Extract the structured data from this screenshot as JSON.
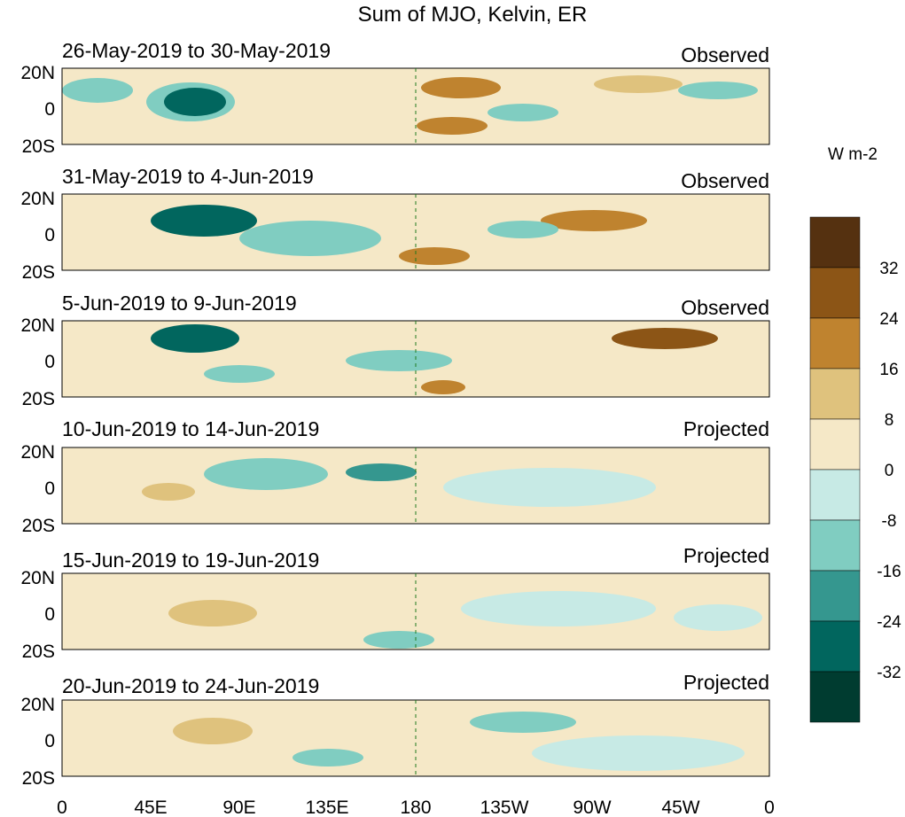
{
  "title": "Sum of MJO, Kelvin, ER",
  "colorbar": {
    "units": "W m-2",
    "tick_labels": [
      "32",
      "24",
      "16",
      "8",
      "0",
      "-8",
      "-16",
      "-24",
      "-32"
    ],
    "colors": [
      "#553110",
      "#8c5516",
      "#bf832f",
      "#dfc27d",
      "#f5e8c7",
      "#c7eae5",
      "#80cdc1",
      "#35978f",
      "#01665e",
      "#003c30"
    ]
  },
  "panels": [
    {
      "dates": "26-May-2019 to 30-May-2019",
      "status": "Observed"
    },
    {
      "dates": "31-May-2019 to 4-Jun-2019",
      "status": "Observed"
    },
    {
      "dates": "5-Jun-2019 to 9-Jun-2019",
      "status": "Observed"
    },
    {
      "dates": "10-Jun-2019 to 14-Jun-2019",
      "status": "Projected"
    },
    {
      "dates": "15-Jun-2019 to 19-Jun-2019",
      "status": "Projected"
    },
    {
      "dates": "20-Jun-2019 to 24-Jun-2019",
      "status": "Projected"
    }
  ],
  "lat_labels": [
    "20N",
    "0",
    "20S"
  ],
  "lon_labels": [
    "0",
    "45E",
    "90E",
    "135E",
    "180",
    "135W",
    "90W",
    "45W",
    "0"
  ],
  "land_color": "#1e7a1e"
}
